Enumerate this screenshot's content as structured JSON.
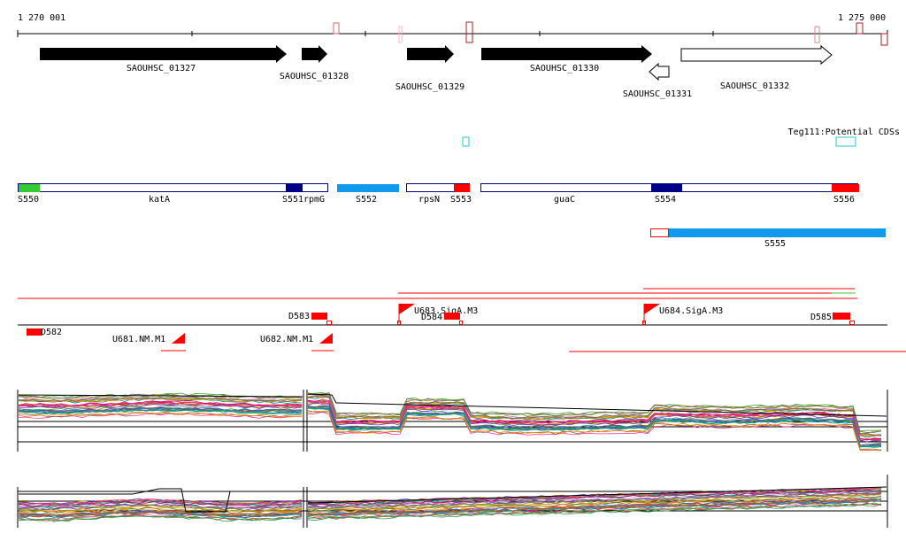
{
  "ruler": {
    "start_label": "1 270 001",
    "end_label": "1 275 000"
  },
  "genes": [
    {
      "label": "SAOUHSC_01327",
      "strand": "+",
      "filled": true
    },
    {
      "label": "SAOUHSC_01328",
      "strand": "+",
      "filled": true
    },
    {
      "label": "SAOUHSC_01329",
      "strand": "+",
      "filled": true
    },
    {
      "label": "SAOUHSC_01330",
      "strand": "+",
      "filled": true
    },
    {
      "label": "SAOUHSC_01331",
      "strand": "-",
      "filled": false
    },
    {
      "label": "SAOUHSC_01332",
      "strand": "+",
      "filled": false
    }
  ],
  "potential_cds_label": "Teg111:Potential CDSs",
  "segments": {
    "items": [
      {
        "label": "S550",
        "color": "#33cc33"
      },
      {
        "label": "katA"
      },
      {
        "label": "S551"
      },
      {
        "label": "rpmG"
      },
      {
        "label": "S552",
        "color": "#1199ee"
      },
      {
        "label": "rpsN"
      },
      {
        "label": "S553",
        "color": "#ff0000"
      },
      {
        "label": "guaC"
      },
      {
        "label": "S554",
        "color": "#000088"
      },
      {
        "label": "S556",
        "color": "#ff0000"
      },
      {
        "label": "S555",
        "color": "#1199ee"
      }
    ]
  },
  "features": [
    {
      "label": "D582"
    },
    {
      "label": "U681.NM.M1"
    },
    {
      "label": "U682.NM.M1"
    },
    {
      "label": "D583"
    },
    {
      "label": "U683.SigA.M3"
    },
    {
      "label": "D584"
    },
    {
      "label": "U684.SigA.M3"
    },
    {
      "label": "D585"
    }
  ],
  "colors": {
    "feature_red": "#ff0000",
    "segment_blue": "#1199ee",
    "segment_navy": "#000088",
    "segment_green": "#33cc33",
    "cds_cyan": "#22cccc"
  }
}
